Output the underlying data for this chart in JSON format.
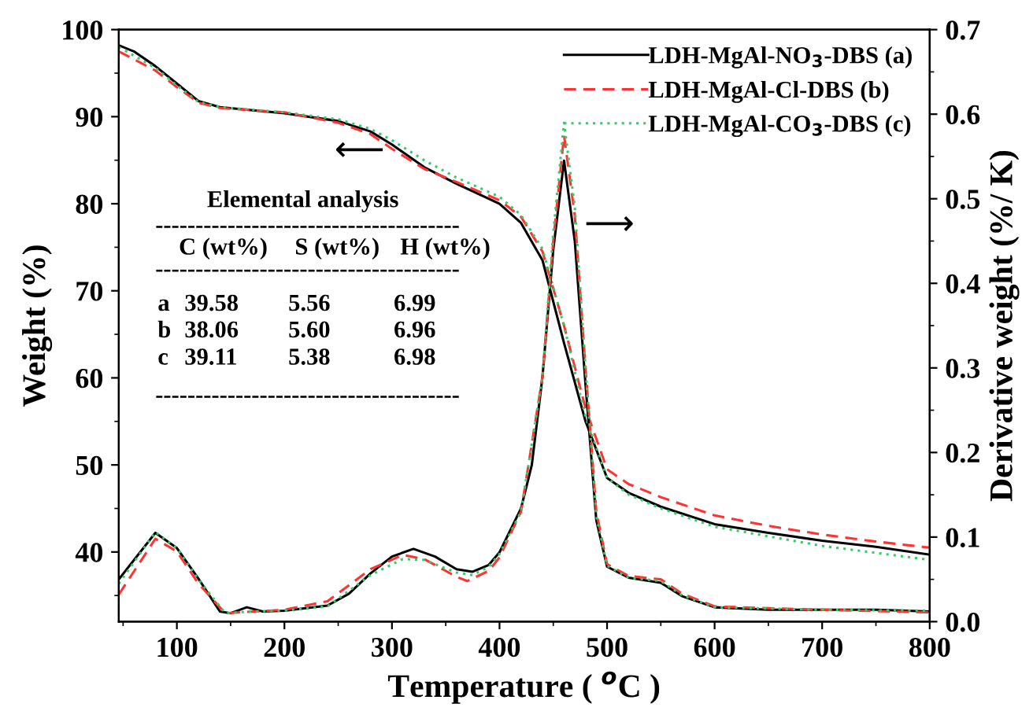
{
  "chart_data": {
    "type": "line",
    "xlabel": "Temperature ( $^{o}$C )",
    "ylabel": "Weight (%)",
    "y2label": "Derivative weight (%/ K)",
    "xlim": [
      46,
      800
    ],
    "xticks": [
      100,
      200,
      300,
      400,
      500,
      600,
      700,
      800
    ],
    "ylim": [
      32,
      100
    ],
    "yticks": [
      40,
      50,
      60,
      70,
      80,
      90,
      100
    ],
    "y2lim": [
      0,
      0.7
    ],
    "y2ticks": [
      {
        "value": 0,
        "label": "0.0"
      },
      0.1,
      0.2,
      0.3,
      0.4,
      0.5,
      0.6,
      0.7
    ],
    "grid": false,
    "legend": "top right",
    "marker": "none",
    "series": [
      {
        "name": "LDH-MgAl-NO$_{3}$-DBS (a)",
        "color": "#000000",
        "line_style": "solid",
        "x": [
          46,
          60,
          80,
          100,
          120,
          140,
          200,
          250,
          280,
          300,
          330,
          360,
          400,
          420,
          440,
          460,
          480,
          500,
          520,
          550,
          600,
          650,
          700,
          750,
          800
        ],
        "values": [
          98.2,
          97.5,
          95.8,
          93.8,
          91.8,
          91.1,
          90.4,
          89.5,
          88.3,
          86.8,
          84.2,
          82.3,
          80.0,
          77.8,
          73.5,
          64,
          55,
          48.5,
          46.8,
          45.2,
          43.2,
          42.2,
          41.3,
          40.6,
          39.7
        ]
      },
      {
        "name": "LDH-MgAl-Cl-DBS (b)",
        "color": "#ff3333",
        "line_style": "dashed",
        "x": [
          46,
          80,
          100,
          120,
          140,
          200,
          250,
          280,
          300,
          330,
          360,
          400,
          420,
          440,
          460,
          480,
          500,
          520,
          550,
          600,
          650,
          700,
          750,
          800
        ],
        "values": [
          97.5,
          95.3,
          93.4,
          91.6,
          91.0,
          90.5,
          89.3,
          88.0,
          86.3,
          84.0,
          82.5,
          80.4,
          78.5,
          74.5,
          66,
          56.5,
          49.5,
          47.8,
          46.3,
          44.2,
          43.0,
          42.0,
          41.2,
          40.5
        ]
      },
      {
        "name": "LDH-MgAl-CO$_{3}$-DBS (c)",
        "color": "#33cc66",
        "line_style": "dotted",
        "x": [
          46,
          80,
          100,
          120,
          140,
          200,
          250,
          280,
          300,
          330,
          360,
          400,
          420,
          440,
          460,
          480,
          500,
          520,
          550,
          600,
          650,
          700,
          750,
          800
        ],
        "values": [
          98.0,
          95.6,
          93.6,
          91.7,
          91.1,
          90.5,
          89.7,
          88.6,
          87.3,
          85.0,
          83.0,
          80.8,
          78.7,
          74.8,
          66,
          55.5,
          48.5,
          46.6,
          45.0,
          42.9,
          41.8,
          40.7,
          39.9,
          39.1
        ]
      },
      {
        "color": "#000000",
        "line_style": "solid",
        "axis": "y2",
        "x": [
          46,
          80,
          100,
          120,
          140,
          150,
          165,
          180,
          200,
          240,
          260,
          280,
          300,
          320,
          340,
          360,
          375,
          390,
          400,
          420,
          430,
          440,
          450,
          460,
          470,
          480,
          490,
          500,
          520,
          550,
          570,
          600,
          650,
          700,
          750,
          800
        ],
        "values": [
          0.05,
          0.105,
          0.087,
          0.051,
          0.012,
          0.01,
          0.017,
          0.012,
          0.013,
          0.019,
          0.033,
          0.057,
          0.077,
          0.086,
          0.077,
          0.062,
          0.059,
          0.067,
          0.082,
          0.134,
          0.185,
          0.29,
          0.44,
          0.545,
          0.45,
          0.28,
          0.12,
          0.065,
          0.052,
          0.046,
          0.03,
          0.017,
          0.014,
          0.014,
          0.014,
          0.012
        ]
      },
      {
        "color": "#ff3333",
        "line_style": "dashed",
        "axis": "y2",
        "x": [
          46,
          80,
          100,
          120,
          145,
          200,
          240,
          280,
          310,
          330,
          360,
          370,
          390,
          400,
          420,
          440,
          450,
          460,
          470,
          480,
          490,
          500,
          520,
          550,
          570,
          600,
          700,
          800
        ],
        "values": [
          0.032,
          0.098,
          0.083,
          0.045,
          0.01,
          0.014,
          0.024,
          0.062,
          0.079,
          0.074,
          0.053,
          0.048,
          0.06,
          0.076,
          0.13,
          0.29,
          0.45,
          0.575,
          0.48,
          0.3,
          0.13,
          0.068,
          0.054,
          0.05,
          0.033,
          0.018,
          0.014,
          0.011
        ]
      },
      {
        "color": "#33cc66",
        "line_style": "dotted",
        "axis": "y2",
        "x": [
          46,
          80,
          100,
          120,
          145,
          170,
          200,
          240,
          280,
          310,
          330,
          360,
          375,
          390,
          400,
          420,
          440,
          450,
          460,
          470,
          480,
          490,
          500,
          520,
          550,
          570,
          600,
          700,
          800
        ],
        "values": [
          0.045,
          0.106,
          0.087,
          0.05,
          0.01,
          0.012,
          0.013,
          0.018,
          0.055,
          0.074,
          0.073,
          0.058,
          0.055,
          0.065,
          0.08,
          0.13,
          0.29,
          0.46,
          0.59,
          0.49,
          0.3,
          0.125,
          0.066,
          0.052,
          0.048,
          0.031,
          0.017,
          0.014,
          0.013
        ]
      }
    ],
    "annotations": [
      "⟵",
      "⟶",
      "Elemental analysis",
      "--------------------------------------",
      "C (wt%)  S (wt%)  H (wt%)",
      "--------------------------------------",
      "a  39.58  5.56  6.99",
      "b  38.06  5.60  6.96",
      "c  39.11  5.38  6.98",
      "--------------------------------------"
    ]
  }
}
